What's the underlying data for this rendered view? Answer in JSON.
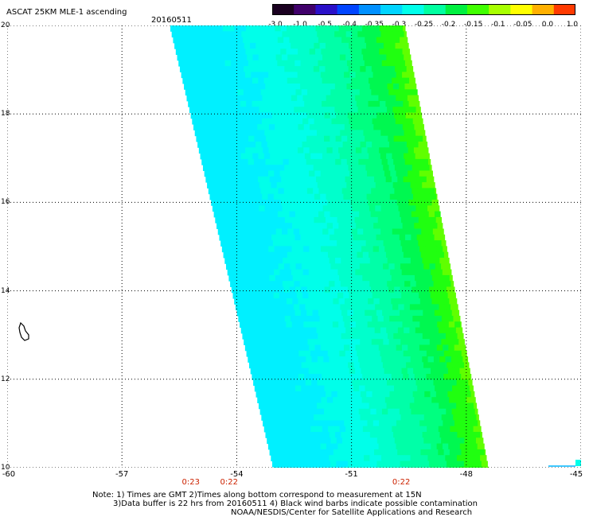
{
  "header": {
    "title": "ASCAT 25KM MLE-1 ascending",
    "date": "20160511"
  },
  "colorbar": {
    "labels": [
      "-3.0",
      "-1.0",
      "-0.5",
      "-0.4",
      "-0.35",
      "-0.3",
      "-0.25",
      "-0.2",
      "-0.15",
      "-0.1",
      "-0.05",
      "0.0",
      "1.0"
    ],
    "colors": [
      "#1a0020",
      "#40006a",
      "#2a10c8",
      "#0044ff",
      "#0090ff",
      "#00d4ff",
      "#00ffea",
      "#00ffa0",
      "#00f040",
      "#40ff00",
      "#a8ff00",
      "#ffff00",
      "#ffb000",
      "#ff3a00"
    ]
  },
  "map": {
    "lon_range": [
      -60,
      -45
    ],
    "lat_range": [
      10,
      20
    ],
    "x_ticks": [
      "-60",
      "-57",
      "-54",
      "-51",
      "-48",
      "-45"
    ],
    "y_ticks": [
      "20",
      "18",
      "16",
      "14",
      "12",
      "10"
    ],
    "times": [
      {
        "label": "0:23",
        "lon": -55.2
      },
      {
        "label": "0:22",
        "lon": -54.2
      },
      {
        "label": "0:22",
        "lon": -49.7
      }
    ]
  },
  "notes": {
    "line1": "Note: 1) Times are GMT 2)Times along bottom correspond to measurement at 15N",
    "line2": "3)Data buffer is 22 hrs from 20160511 4) Black wind barbs indicate possible contamination",
    "line3": "NOAA/NESDIS/Center for Satellite Applications and Research"
  }
}
